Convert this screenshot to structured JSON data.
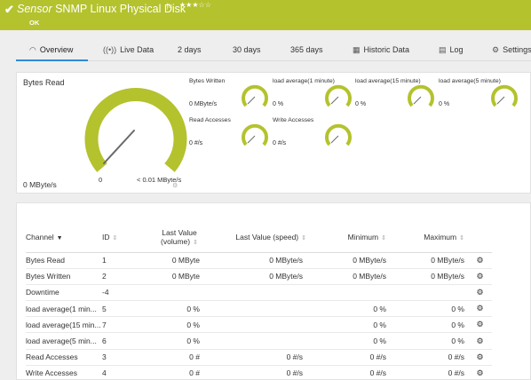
{
  "header": {
    "sensor_word": "Sensor",
    "sensor_name": "SNMP Linux Physical Disk",
    "pin_glyph": "⚐",
    "stars": "★★★☆☆",
    "status": "OK",
    "bg_color": "#b4c22d"
  },
  "tabs": [
    {
      "label": "Overview",
      "icon": "gauge-icon",
      "glyph": "◠"
    },
    {
      "label": "Live Data",
      "icon": "live-data-icon",
      "glyph": "((•))"
    },
    {
      "label": "2  days",
      "icon": "",
      "glyph": ""
    },
    {
      "label": "30  days",
      "icon": "",
      "glyph": ""
    },
    {
      "label": "365  days",
      "icon": "",
      "glyph": ""
    },
    {
      "label": "Historic Data",
      "icon": "historic-data-icon",
      "glyph": "▦"
    },
    {
      "label": "Log",
      "icon": "log-icon",
      "glyph": "▤"
    },
    {
      "label": "Settings",
      "icon": "gear-icon",
      "glyph": "⚙"
    }
  ],
  "gauges": {
    "primary": {
      "label": "Bytes Read",
      "value": "0 MByte/s",
      "scale_min": "0",
      "scale_max": "< 0.01 MByte/s",
      "color": "#b4c22d"
    },
    "minis": [
      {
        "label": "Bytes Written",
        "value": "0 MByte/s"
      },
      {
        "label": "load average(1 minute)",
        "value": "0 %"
      },
      {
        "label": "load average(15 minute)",
        "value": "0 %"
      },
      {
        "label": "load average(5 minute)",
        "value": "0 %"
      },
      {
        "label": "Read Accesses",
        "value": "0 #/s"
      },
      {
        "label": "Write Accesses",
        "value": "0 #/s"
      }
    ]
  },
  "table": {
    "columns": {
      "channel": "Channel",
      "id": "ID",
      "last_value_1": "Last Value",
      "last_value_2": "(volume)",
      "last_speed": "Last Value (speed)",
      "minimum": "Minimum",
      "maximum": "Maximum"
    },
    "rows": [
      {
        "channel": "Bytes Read",
        "id": "1",
        "last_volume": "0 MByte",
        "last_speed": "0 MByte/s",
        "minimum": "0 MByte/s",
        "maximum": "0 MByte/s"
      },
      {
        "channel": "Bytes Written",
        "id": "2",
        "last_volume": "0 MByte",
        "last_speed": "0 MByte/s",
        "minimum": "0 MByte/s",
        "maximum": "0 MByte/s"
      },
      {
        "channel": "Downtime",
        "id": "-4",
        "last_volume": "",
        "last_speed": "",
        "minimum": "",
        "maximum": ""
      },
      {
        "channel": "load average(1 min...",
        "id": "5",
        "last_volume": "0 %",
        "last_speed": "",
        "minimum": "0 %",
        "maximum": "0 %"
      },
      {
        "channel": "load average(15 min...",
        "id": "7",
        "last_volume": "0 %",
        "last_speed": "",
        "minimum": "0 %",
        "maximum": "0 %"
      },
      {
        "channel": "load average(5 min...",
        "id": "6",
        "last_volume": "0 %",
        "last_speed": "",
        "minimum": "0 %",
        "maximum": "0 %"
      },
      {
        "channel": "Read Accesses",
        "id": "3",
        "last_volume": "0 #",
        "last_speed": "0 #/s",
        "minimum": "0 #/s",
        "maximum": "0 #/s"
      },
      {
        "channel": "Write Accesses",
        "id": "4",
        "last_volume": "0 #",
        "last_speed": "0 #/s",
        "minimum": "0 #/s",
        "maximum": "0 #/s"
      }
    ]
  }
}
